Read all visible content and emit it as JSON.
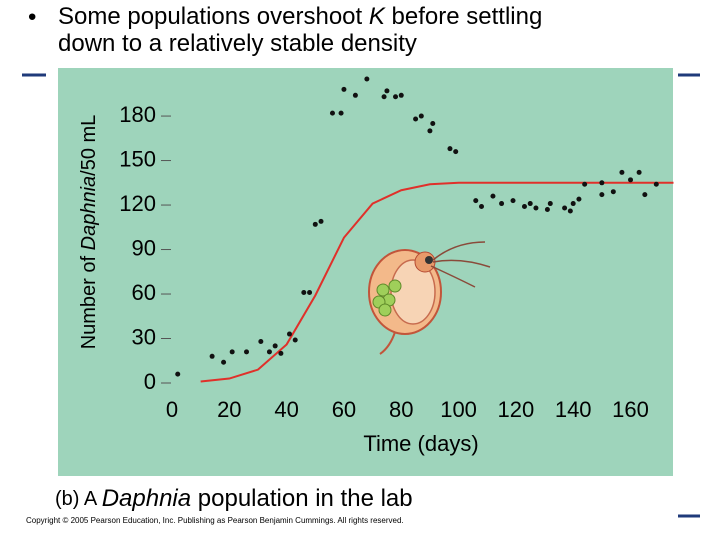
{
  "chart_data": {
    "type": "scatter",
    "title_lines": [
      [
        "Some populations overshoot ",
        "K",
        " before settling"
      ],
      [
        "down to a relatively stable density"
      ]
    ],
    "ylabel": [
      "Number of ",
      "Daphnia",
      "/50 mL"
    ],
    "xlabel": "Time (days)",
    "caption": [
      "(b) A ",
      "Daphnia",
      " population in the lab"
    ],
    "copyright": "Copyright © 2005 Pearson Education, Inc. Publishing as Pearson Benjamin Cummings. All rights reserved.",
    "xlim": [
      0,
      175
    ],
    "ylim": [
      0,
      200
    ],
    "xticks": [
      0,
      20,
      40,
      60,
      80,
      100,
      120,
      140,
      160
    ],
    "yticks": [
      0,
      30,
      60,
      90,
      120,
      150,
      180
    ],
    "points": {
      "color": "#111111",
      "x": [
        2,
        14,
        18,
        21,
        26,
        31,
        34,
        36,
        38,
        41,
        43,
        46,
        48,
        50,
        52,
        56,
        59,
        60,
        64,
        68,
        74,
        75,
        78,
        80,
        85,
        87,
        90,
        91,
        97,
        99,
        106,
        108,
        112,
        115,
        119,
        123,
        125,
        127,
        131,
        132,
        137,
        139,
        140,
        142,
        144,
        150,
        150,
        154,
        157,
        160,
        163,
        165,
        169
      ],
      "values": [
        6,
        18,
        14,
        21,
        21,
        28,
        21,
        25,
        20,
        33,
        29,
        61,
        61,
        107,
        109,
        182,
        182,
        198,
        194,
        205,
        193,
        197,
        193,
        194,
        178,
        180,
        170,
        175,
        158,
        156,
        123,
        119,
        126,
        121,
        123,
        119,
        121,
        118,
        117,
        121,
        118,
        116,
        121,
        124,
        134,
        135,
        127,
        129,
        142,
        137,
        142,
        127,
        134
      ]
    },
    "curve": {
      "color": "#e0302a",
      "x": [
        10,
        20,
        30,
        40,
        50,
        60,
        70,
        80,
        90,
        100,
        110,
        120,
        130,
        140,
        150,
        160,
        170,
        175
      ],
      "values": [
        1,
        3,
        9,
        26,
        59,
        98,
        121,
        130,
        134,
        135,
        135,
        135,
        135,
        135,
        135,
        135,
        135,
        135
      ]
    }
  }
}
